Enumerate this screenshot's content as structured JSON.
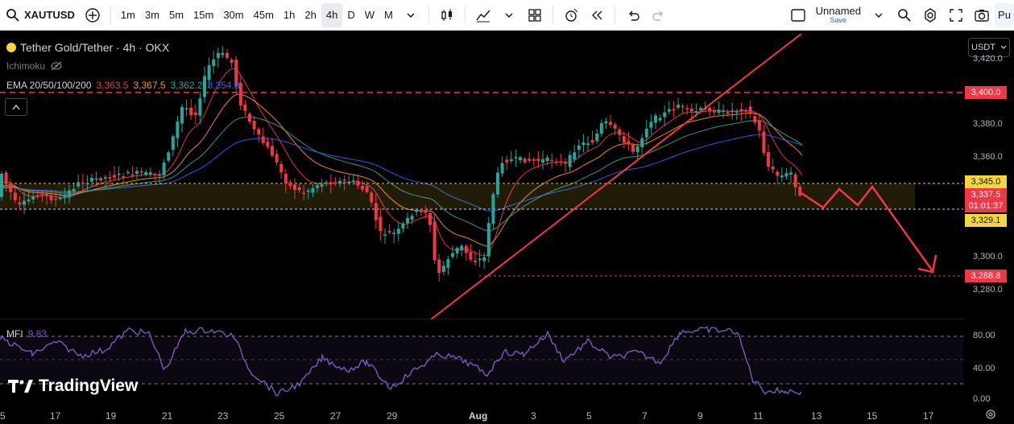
{
  "toolbar": {
    "symbol": "XAUTUSD",
    "intervals": [
      "1m",
      "3m",
      "5m",
      "15m",
      "30m",
      "45m",
      "1h",
      "2h",
      "4h",
      "D",
      "W",
      "M"
    ],
    "active_interval": "4h",
    "layout_name": "Unnamed",
    "layout_save": "Save",
    "publish_label": "Pu"
  },
  "legend": {
    "title": "Tether Gold/Tether · 4h · OKX",
    "ichimoku": "Ichimoku",
    "ema_label": "EMA 20/50/100/200",
    "ema_values": [
      "3,363.5",
      "3,367.5",
      "3,362.2",
      "3,354.8"
    ],
    "ema_colors": [
      "#f23645",
      "#ff9800",
      "#26a69a",
      "#2962ff"
    ]
  },
  "currency_button": "USDT",
  "price_axis": {
    "ticks": [
      "3,420.0",
      "3,380.0",
      "3,360.0",
      "3,300.0",
      "3,280.0"
    ],
    "tags": {
      "resistance": "3,400.0",
      "zone_top": "3,345.0",
      "current_price": "3,337.5",
      "countdown": "01:01:37",
      "zone_bottom": "3,329.1",
      "target": "3,288.8"
    },
    "colors": {
      "red": "#f23645",
      "yellow": "#f5d63d"
    }
  },
  "mfi": {
    "label": "MFI",
    "value": "9.83",
    "ticks": [
      "80.00",
      "40.00",
      "0.00"
    ]
  },
  "time_axis": [
    "5",
    "17",
    "19",
    "21",
    "23",
    "25",
    "27",
    "29",
    "Aug",
    "3",
    "5",
    "7",
    "9",
    "11",
    "13",
    "15",
    "17"
  ],
  "branding": "TradingView"
}
